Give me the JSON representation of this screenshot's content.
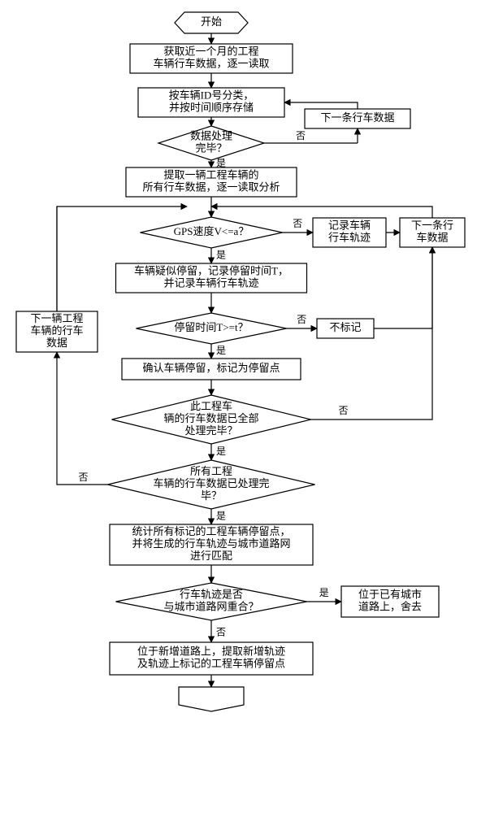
{
  "colors": {
    "stroke": "#000000",
    "fill": "#ffffff",
    "text": "#000000",
    "bg": "#ffffff"
  },
  "stroke_width": 1.2,
  "font_size_box": 13,
  "font_size_edge": 12,
  "yes_label": "是",
  "no_label": "否",
  "nodes": {
    "start": {
      "label": "开始"
    },
    "n1": {
      "l1": "获取近一个月的工程",
      "l2": "车辆行车数据，逐一读取"
    },
    "n2": {
      "l1": "按车辆ID号分类，",
      "l2": "并按时间顺序存储"
    },
    "side_next1": {
      "label": "下一条行车数据"
    },
    "d1": {
      "l1": "数据处理",
      "l2": "完毕？"
    },
    "n3": {
      "l1": "提取一辆工程车辆的",
      "l2": "所有行车数据，逐一读取分析"
    },
    "d2": {
      "label": "GPS速度V<=a？"
    },
    "side_record": {
      "l1": "记录车辆",
      "l2": "行车轨迹"
    },
    "side_next2": {
      "l1": "下一条行",
      "l2": "车数据"
    },
    "n4": {
      "l1": "车辆疑似停留，记录停留时间T，",
      "l2": "并记录车辆行车轨迹"
    },
    "side_nextveh": {
      "l1": "下一辆工程",
      "l2": "车辆的行车",
      "l3": "数据"
    },
    "d3": {
      "label": "停留时间T>=t？"
    },
    "side_nomark": {
      "label": "不标记"
    },
    "n5": {
      "label": "确认车辆停留，标记为停留点"
    },
    "d4": {
      "l1": "此工程车",
      "l2": "辆的行车数据已全部",
      "l3": "处理完毕？"
    },
    "d5": {
      "l1": "所有工程",
      "l2": "车辆的行车数据已处理完",
      "l3": "毕？"
    },
    "n6": {
      "l1": "统计所有标记的工程车辆停留点，",
      "l2": "并将生成的行车轨迹与城市道路网",
      "l3": "进行匹配"
    },
    "d6": {
      "l1": "行车轨迹是否",
      "l2": "与城市道路网重合？"
    },
    "side_discard": {
      "l1": "位于已有城市",
      "l2": "道路上，舍去"
    },
    "n7": {
      "l1": "位于新增道路上，提取新增轨迹",
      "l2": "及轨迹上标记的工程车辆停留点"
    },
    "end": {
      "label": ""
    }
  }
}
